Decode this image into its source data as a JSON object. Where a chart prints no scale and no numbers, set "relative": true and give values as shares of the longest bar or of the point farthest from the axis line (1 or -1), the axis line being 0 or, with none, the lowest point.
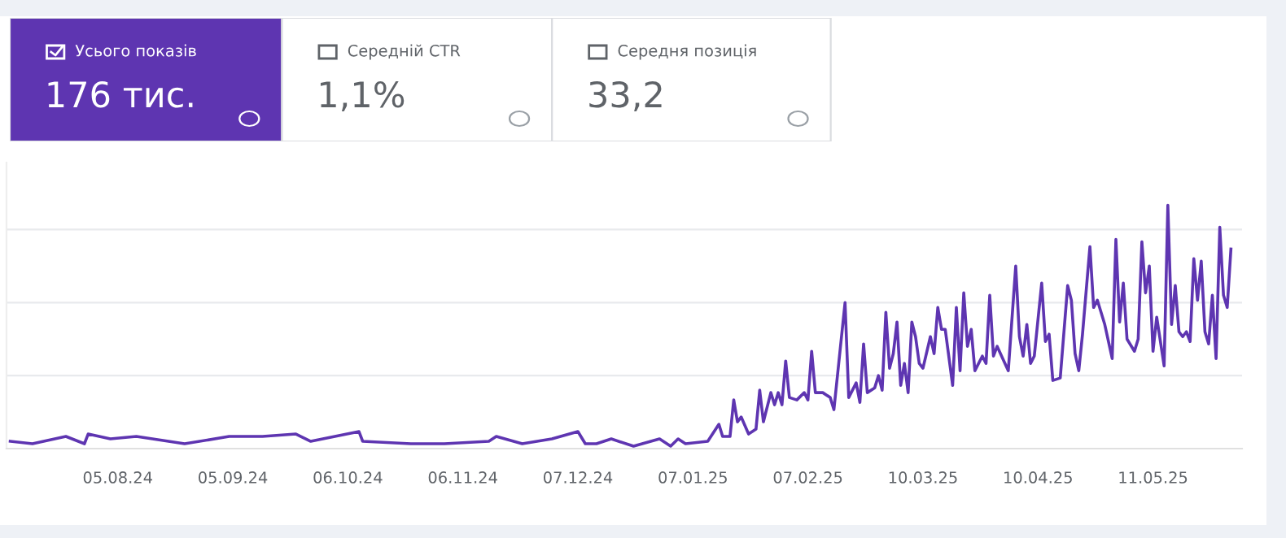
{
  "chart_data": [
    {
      "type": "other",
      "annotations": [
        "Усього показів",
        "176 тис.",
        "Середній CTR",
        "1,1%",
        "Середня позиція",
        "33,2"
      ],
      "colors": [
        "#5e35b1",
        "#ffffff",
        "#ffffff"
      ]
    },
    {
      "type": "line",
      "relative": true,
      "grid": "y",
      "marker": "none",
      "line_style": "solid",
      "xlim": [
        "2024-07-06",
        "2025-06-04"
      ],
      "xticks": [
        {
          "value": "2024-08-05",
          "label": "05.08.24"
        },
        {
          "value": "2024-09-05",
          "label": "05.09.24"
        },
        {
          "value": "2024-10-06",
          "label": "06.10.24"
        },
        {
          "value": "2024-11-06",
          "label": "06.11.24"
        },
        {
          "value": "2024-12-07",
          "label": "07.12.24"
        },
        {
          "value": "2025-01-07",
          "label": "07.01.25"
        },
        {
          "value": "2025-02-07",
          "label": "07.02.25"
        },
        {
          "value": "2025-03-10",
          "label": "10.03.25"
        },
        {
          "value": "2025-04-10",
          "label": "10.04.25"
        },
        {
          "value": "2025-05-11",
          "label": "11.05.25"
        }
      ],
      "series": [
        {
          "color": "#5e35b1",
          "x": [
            "2024-07-07",
            "2024-07-13",
            "2024-07-22",
            "2024-07-27",
            "2024-07-28",
            "2024-08-03",
            "2024-08-10",
            "2024-08-23",
            "2024-09-04",
            "2024-09-13",
            "2024-09-22",
            "2024-09-26",
            "2024-10-09",
            "2024-10-10",
            "2024-10-23",
            "2024-11-01",
            "2024-11-13",
            "2024-11-15",
            "2024-11-22",
            "2024-11-30",
            "2024-12-07",
            "2024-12-09",
            "2024-12-12",
            "2024-12-16",
            "2024-12-22",
            "2024-12-29",
            "2025-01-01",
            "2025-01-03",
            "2025-01-05",
            "2025-01-11",
            "2025-01-14",
            "2025-01-15",
            "2025-01-17",
            "2025-01-18",
            "2025-01-19",
            "2025-01-20",
            "2025-01-22",
            "2025-01-24",
            "2025-01-25",
            "2025-01-26",
            "2025-01-28",
            "2025-01-29",
            "2025-01-30",
            "2025-01-31",
            "2025-02-01",
            "2025-02-02",
            "2025-02-04",
            "2025-02-06",
            "2025-02-07",
            "2025-02-08",
            "2025-02-09",
            "2025-02-11",
            "2025-02-13",
            "2025-02-14",
            "2025-02-17",
            "2025-02-18",
            "2025-02-20",
            "2025-02-21",
            "2025-02-22",
            "2025-02-23",
            "2025-02-25",
            "2025-02-26",
            "2025-02-27",
            "2025-02-28",
            "2025-03-01",
            "2025-03-02",
            "2025-03-03",
            "2025-03-04",
            "2025-03-05",
            "2025-03-06",
            "2025-03-07",
            "2025-03-08",
            "2025-03-09",
            "2025-03-10",
            "2025-03-12",
            "2025-03-13",
            "2025-03-14",
            "2025-03-15",
            "2025-03-16",
            "2025-03-18",
            "2025-03-19",
            "2025-03-20",
            "2025-03-21",
            "2025-03-22",
            "2025-03-23",
            "2025-03-24",
            "2025-03-26",
            "2025-03-27",
            "2025-03-28",
            "2025-03-29",
            "2025-03-30",
            "2025-04-02",
            "2025-04-04",
            "2025-04-05",
            "2025-04-06",
            "2025-04-07",
            "2025-04-08",
            "2025-04-09",
            "2025-04-11",
            "2025-04-12",
            "2025-04-13",
            "2025-04-14",
            "2025-04-16",
            "2025-04-18",
            "2025-04-19",
            "2025-04-20",
            "2025-04-21",
            "2025-04-22",
            "2025-04-24",
            "2025-04-25",
            "2025-04-26",
            "2025-04-28",
            "2025-04-30",
            "2025-05-01",
            "2025-05-02",
            "2025-05-03",
            "2025-05-04",
            "2025-05-06",
            "2025-05-07",
            "2025-05-08",
            "2025-05-09",
            "2025-05-10",
            "2025-05-11",
            "2025-05-12",
            "2025-05-14",
            "2025-05-15",
            "2025-05-16",
            "2025-05-17",
            "2025-05-18",
            "2025-05-19",
            "2025-05-20",
            "2025-05-21",
            "2025-05-22",
            "2025-05-23",
            "2025-05-24",
            "2025-05-25",
            "2025-05-26",
            "2025-05-27",
            "2025-05-28",
            "2025-05-29",
            "2025-05-30",
            "2025-05-31",
            "2025-06-01"
          ],
          "values": [
            0.03,
            0.02,
            0.05,
            0.02,
            0.06,
            0.04,
            0.05,
            0.02,
            0.05,
            0.05,
            0.06,
            0.03,
            0.07,
            0.03,
            0.02,
            0.02,
            0.03,
            0.05,
            0.02,
            0.04,
            0.07,
            0.02,
            0.02,
            0.04,
            0.01,
            0.04,
            0.01,
            0.04,
            0.02,
            0.03,
            0.1,
            0.05,
            0.05,
            0.2,
            0.11,
            0.13,
            0.06,
            0.08,
            0.24,
            0.11,
            0.23,
            0.18,
            0.23,
            0.18,
            0.36,
            0.21,
            0.2,
            0.23,
            0.2,
            0.4,
            0.23,
            0.23,
            0.21,
            0.16,
            0.6,
            0.21,
            0.27,
            0.19,
            0.43,
            0.23,
            0.25,
            0.3,
            0.24,
            0.56,
            0.33,
            0.39,
            0.52,
            0.26,
            0.35,
            0.23,
            0.52,
            0.46,
            0.35,
            0.33,
            0.46,
            0.39,
            0.58,
            0.49,
            0.49,
            0.26,
            0.58,
            0.32,
            0.64,
            0.42,
            0.49,
            0.32,
            0.38,
            0.35,
            0.63,
            0.38,
            0.42,
            0.32,
            0.75,
            0.46,
            0.38,
            0.51,
            0.35,
            0.38,
            0.68,
            0.44,
            0.47,
            0.28,
            0.29,
            0.67,
            0.61,
            0.39,
            0.32,
            0.47,
            0.83,
            0.58,
            0.61,
            0.51,
            0.37,
            0.86,
            0.52,
            0.68,
            0.45,
            0.4,
            0.45,
            0.85,
            0.64,
            0.75,
            0.4,
            0.54,
            0.34,
            1,
            0.51,
            0.67,
            0.48,
            0.46,
            0.48,
            0.44,
            0.78,
            0.61,
            0.77,
            0.48,
            0.43,
            0.63,
            0.37,
            0.91,
            0.63,
            0.58,
            0.82
          ]
        }
      ]
    }
  ]
}
